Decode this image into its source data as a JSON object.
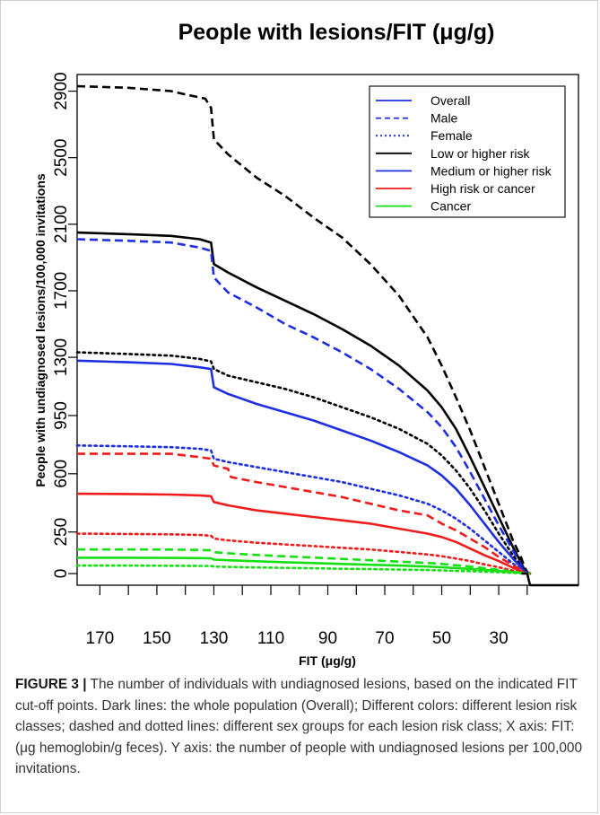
{
  "chart_data": {
    "type": "line",
    "title": "People with lesions/FIT (μg/g)",
    "xlabel": "FIT (μg/g)",
    "ylabel": "People with undiagnosed lesions/100,000 invitations",
    "x_reversed": true,
    "xlim": [
      178,
      2
    ],
    "ylim": [
      -70,
      3000
    ],
    "x_ticks": [
      170,
      150,
      130,
      110,
      90,
      70,
      50,
      30
    ],
    "y_ticks": [
      0,
      250,
      600,
      950,
      1300,
      1700,
      2100,
      2500,
      2900
    ],
    "grid": false,
    "legend_position": "top-right",
    "legend": [
      {
        "label": "Overall",
        "color": "#1d2fe0",
        "style": "solid"
      },
      {
        "label": "Male",
        "color": "#1d2fe0",
        "style": "dashed"
      },
      {
        "label": "Female",
        "color": "#1d2fe0",
        "style": "dotted"
      },
      {
        "label": "Low or higher risk",
        "color": "#000000",
        "style": "solid"
      },
      {
        "label": "Medium or higher risk",
        "color": "#1d2fe0",
        "style": "solid"
      },
      {
        "label": "High risk or cancer",
        "color": "#ef1c1c",
        "style": "solid"
      },
      {
        "label": "Cancer",
        "color": "#14e014",
        "style": "solid"
      }
    ],
    "series": [
      {
        "color": "#000000",
        "style": "dashed",
        "x": [
          178,
          160,
          145,
          140,
          133,
          131,
          130,
          125,
          115,
          105,
          95,
          85,
          75,
          65,
          55,
          50,
          45,
          40,
          35,
          30,
          25,
          22,
          21,
          20,
          19
        ],
        "values": [
          2930,
          2920,
          2900,
          2880,
          2855,
          2800,
          2610,
          2520,
          2380,
          2270,
          2140,
          2020,
          1860,
          1670,
          1420,
          1250,
          1060,
          860,
          640,
          420,
          200,
          90,
          40,
          10,
          0
        ]
      },
      {
        "color": "#000000",
        "style": "solid",
        "x": [
          178,
          160,
          145,
          135,
          131,
          130,
          125,
          115,
          105,
          95,
          85,
          75,
          65,
          55,
          50,
          45,
          40,
          35,
          30,
          25,
          22,
          21,
          20,
          19
        ],
        "values": [
          2050,
          2040,
          2030,
          2010,
          1990,
          1860,
          1810,
          1720,
          1640,
          1560,
          1470,
          1370,
          1250,
          1100,
          1000,
          870,
          700,
          520,
          340,
          160,
          60,
          25,
          5,
          0
        ]
      },
      {
        "color": "#1d2fe0",
        "style": "dashed",
        "x": [
          178,
          160,
          145,
          135,
          131,
          130,
          125,
          115,
          105,
          95,
          85,
          75,
          65,
          55,
          50,
          45,
          40,
          35,
          30,
          25,
          22,
          21,
          20,
          19
        ],
        "values": [
          2010,
          2000,
          1990,
          1960,
          1940,
          1780,
          1690,
          1600,
          1500,
          1420,
          1330,
          1230,
          1110,
          970,
          880,
          760,
          610,
          450,
          290,
          140,
          50,
          20,
          5,
          0
        ]
      },
      {
        "color": "#000000",
        "style": "dotted",
        "x": [
          178,
          160,
          145,
          135,
          131,
          130,
          125,
          115,
          105,
          95,
          85,
          75,
          65,
          55,
          50,
          45,
          40,
          35,
          30,
          25,
          22,
          21,
          20,
          19
        ],
        "values": [
          1330,
          1320,
          1310,
          1290,
          1275,
          1230,
          1190,
          1150,
          1110,
          1060,
          1000,
          940,
          870,
          780,
          710,
          620,
          510,
          380,
          240,
          110,
          40,
          15,
          3,
          0
        ]
      },
      {
        "color": "#1d2fe0",
        "style": "solid",
        "x": [
          178,
          160,
          145,
          135,
          131,
          130,
          125,
          115,
          105,
          95,
          85,
          75,
          65,
          55,
          50,
          45,
          40,
          35,
          30,
          25,
          22,
          21,
          20,
          19
        ],
        "values": [
          1280,
          1270,
          1260,
          1240,
          1230,
          1120,
          1080,
          1020,
          970,
          920,
          860,
          800,
          730,
          650,
          590,
          510,
          410,
          300,
          190,
          90,
          35,
          12,
          3,
          0
        ]
      },
      {
        "color": "#1d2fe0",
        "style": "dotted",
        "x": [
          178,
          160,
          145,
          135,
          131,
          130,
          125,
          115,
          105,
          95,
          85,
          75,
          65,
          55,
          50,
          45,
          40,
          35,
          30,
          25,
          22,
          21,
          20,
          19
        ],
        "values": [
          770,
          765,
          760,
          750,
          740,
          690,
          670,
          640,
          610,
          580,
          550,
          510,
          470,
          420,
          380,
          330,
          270,
          200,
          130,
          60,
          25,
          8,
          2,
          0
        ]
      },
      {
        "color": "#ef1c1c",
        "style": "dashed",
        "x": [
          178,
          160,
          145,
          135,
          131,
          130,
          125,
          124,
          115,
          105,
          95,
          85,
          75,
          65,
          55,
          50,
          45,
          40,
          35,
          30,
          25,
          22,
          21,
          20,
          19
        ],
        "values": [
          720,
          720,
          720,
          700,
          690,
          650,
          630,
          580,
          550,
          520,
          490,
          460,
          420,
          380,
          350,
          300,
          260,
          210,
          160,
          100,
          50,
          20,
          5,
          2,
          0
        ]
      },
      {
        "color": "#ef1c1c",
        "style": "solid",
        "x": [
          178,
          160,
          145,
          135,
          131,
          130,
          125,
          115,
          105,
          95,
          85,
          75,
          65,
          55,
          50,
          45,
          40,
          35,
          30,
          25,
          22,
          21,
          20,
          19
        ],
        "values": [
          480,
          478,
          475,
          470,
          465,
          430,
          410,
          380,
          360,
          340,
          320,
          300,
          270,
          240,
          220,
          190,
          150,
          110,
          75,
          35,
          15,
          5,
          2,
          0
        ]
      },
      {
        "color": "#ef1c1c",
        "style": "dotted",
        "x": [
          178,
          160,
          145,
          135,
          131,
          130,
          125,
          115,
          105,
          95,
          85,
          75,
          65,
          55,
          50,
          45,
          40,
          35,
          30,
          25,
          22,
          21,
          20,
          19
        ],
        "values": [
          240,
          238,
          236,
          232,
          228,
          210,
          200,
          185,
          175,
          165,
          155,
          145,
          130,
          115,
          105,
          90,
          75,
          55,
          38,
          18,
          8,
          3,
          1,
          0
        ]
      },
      {
        "color": "#14e014",
        "style": "dashed",
        "x": [
          178,
          160,
          145,
          135,
          131,
          130,
          125,
          115,
          105,
          95,
          85,
          75,
          65,
          55,
          50,
          45,
          40,
          35,
          30,
          25,
          22,
          21,
          20,
          19
        ],
        "values": [
          145,
          145,
          144,
          142,
          140,
          128,
          122,
          112,
          104,
          96,
          88,
          80,
          72,
          64,
          58,
          50,
          42,
          32,
          22,
          12,
          5,
          2,
          1,
          0
        ]
      },
      {
        "color": "#14e014",
        "style": "solid",
        "x": [
          178,
          160,
          145,
          135,
          131,
          130,
          125,
          115,
          105,
          95,
          85,
          75,
          65,
          55,
          50,
          45,
          40,
          35,
          30,
          25,
          22,
          21,
          20,
          19
        ],
        "values": [
          95,
          95,
          94,
          93,
          92,
          84,
          80,
          74,
          68,
          63,
          58,
          53,
          48,
          42,
          38,
          33,
          28,
          22,
          15,
          8,
          4,
          2,
          1,
          0
        ]
      },
      {
        "color": "#14e014",
        "style": "dotted",
        "x": [
          178,
          160,
          145,
          135,
          131,
          130,
          125,
          115,
          105,
          95,
          85,
          75,
          65,
          55,
          50,
          45,
          40,
          35,
          30,
          25,
          22,
          21,
          20,
          19
        ],
        "values": [
          48,
          48,
          47,
          46,
          46,
          42,
          40,
          37,
          34,
          32,
          29,
          27,
          24,
          21,
          19,
          16,
          14,
          11,
          8,
          4,
          2,
          1,
          0,
          0
        ]
      },
      {
        "color": "#000000",
        "style": "solid",
        "x": [
          22,
          21,
          20,
          19,
          2
        ],
        "values": [
          0,
          0,
          0,
          -70,
          -70
        ]
      }
    ]
  },
  "caption": {
    "label": "FIGURE 3 |",
    "text": " The number of individuals with undiagnosed lesions, based on the indicated FIT cut-off points. Dark lines: the whole population (Overall); Different colors: different lesion risk classes; dashed and dotted lines: different sex groups for each lesion risk class; X axis: FIT: (μg hemoglobin/g feces). Y axis: the number of people with undiagnosed lesions per 100,000 invitations."
  }
}
